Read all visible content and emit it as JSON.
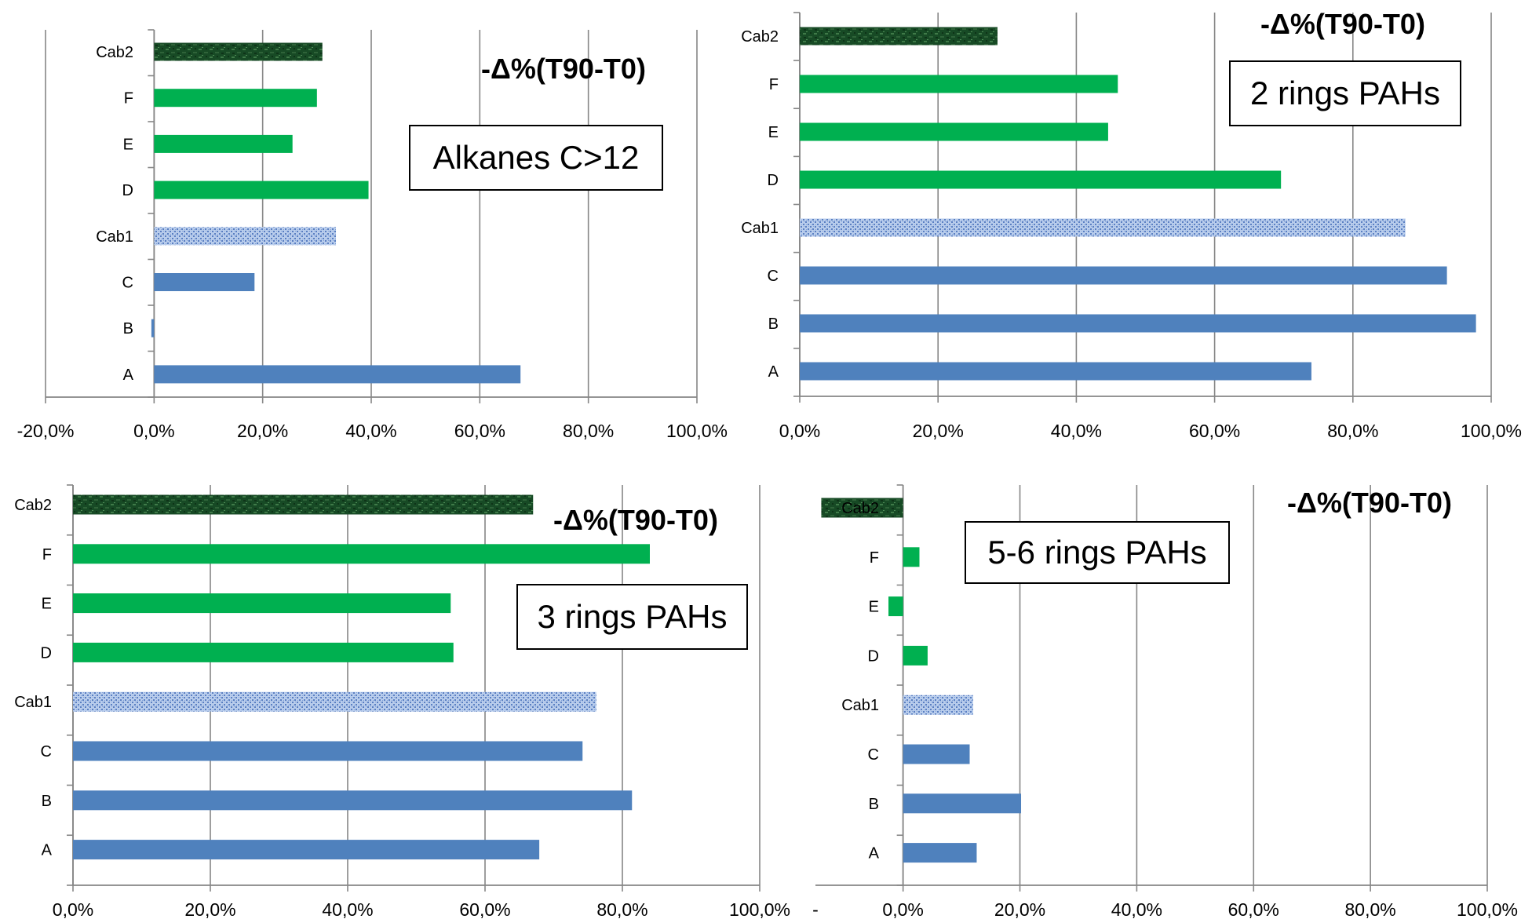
{
  "colors": {
    "blue": "#4f81bd",
    "green": "#00b050",
    "cab1_light": "#b9cdec",
    "cab1_dark": "#5a7fc2",
    "cab2_dark": "#174a25",
    "cab2_light": "#3f7a48",
    "gridline": "#868686",
    "axis": "#868686"
  },
  "chart_data": [
    {
      "type": "bar",
      "orientation": "horizontal",
      "heading": "-Δ%(T90-T0)",
      "box_label": "Alkanes C>12",
      "categories": [
        "A",
        "B",
        "C",
        "Cab1",
        "D",
        "E",
        "F",
        "Cab2"
      ],
      "values": [
        67.5,
        -0.5,
        18.5,
        33.5,
        39.5,
        25.5,
        30.0,
        31.0
      ],
      "styles": [
        "blue",
        "blue",
        "blue",
        "cab1",
        "green",
        "green",
        "green",
        "cab2"
      ],
      "xlim": [
        -20,
        100
      ],
      "xticks": [
        -20,
        0,
        20,
        40,
        60,
        80,
        100
      ],
      "xtick_labels": [
        "-20,0%",
        "0,0%",
        "20,0%",
        "40,0%",
        "60,0%",
        "80,0%",
        "100,0%"
      ],
      "grid": true
    },
    {
      "type": "bar",
      "orientation": "horizontal",
      "heading": "-Δ%(T90-T0)",
      "box_label": "2 rings PAHs",
      "categories": [
        "A",
        "B",
        "C",
        "Cab1",
        "D",
        "E",
        "F",
        "Cab2"
      ],
      "values": [
        74.0,
        97.8,
        93.6,
        87.6,
        69.6,
        44.6,
        46.0,
        28.6
      ],
      "styles": [
        "blue",
        "blue",
        "blue",
        "cab1",
        "green",
        "green",
        "green",
        "cab2"
      ],
      "xlim": [
        0,
        100
      ],
      "xticks": [
        0,
        20,
        40,
        60,
        80,
        100
      ],
      "xtick_labels": [
        "0,0%",
        "20,0%",
        "40,0%",
        "60,0%",
        "80,0%",
        "100,0%"
      ],
      "grid": true
    },
    {
      "type": "bar",
      "orientation": "horizontal",
      "heading": "-Δ%(T90-T0)",
      "box_label": "3 rings PAHs",
      "categories": [
        "A",
        "B",
        "C",
        "Cab1",
        "D",
        "E",
        "F",
        "Cab2"
      ],
      "values": [
        67.9,
        81.4,
        74.2,
        76.2,
        55.4,
        55.0,
        84.0,
        67.0
      ],
      "styles": [
        "blue",
        "blue",
        "blue",
        "cab1",
        "green",
        "green",
        "green",
        "cab2"
      ],
      "xlim": [
        0,
        100
      ],
      "xticks": [
        0,
        20,
        40,
        60,
        80,
        100
      ],
      "xtick_labels": [
        "0,0%",
        "20,0%",
        "40,0%",
        "60,0%",
        "80,0%",
        "100,0%"
      ],
      "grid": true
    },
    {
      "type": "bar",
      "orientation": "horizontal",
      "heading": "-Δ%(T90-T0)",
      "box_label": "5-6 rings PAHs",
      "categories": [
        "A",
        "B",
        "C",
        "Cab1",
        "D",
        "E",
        "F",
        "Cab2"
      ],
      "values": [
        12.6,
        20.2,
        11.4,
        12.0,
        4.2,
        -2.5,
        2.8,
        -14.0
      ],
      "styles": [
        "blue",
        "blue",
        "blue",
        "cab1",
        "green",
        "green",
        "green",
        "cab2"
      ],
      "xlim": [
        -15,
        100
      ],
      "xticks": [
        0,
        20,
        40,
        60,
        80,
        100
      ],
      "xtick_labels": [
        "0,0%",
        "20,0%",
        "40,0%",
        "60,0%",
        "80,0%",
        "100,0%"
      ],
      "edge_tick_label": "-",
      "grid": true
    }
  ]
}
